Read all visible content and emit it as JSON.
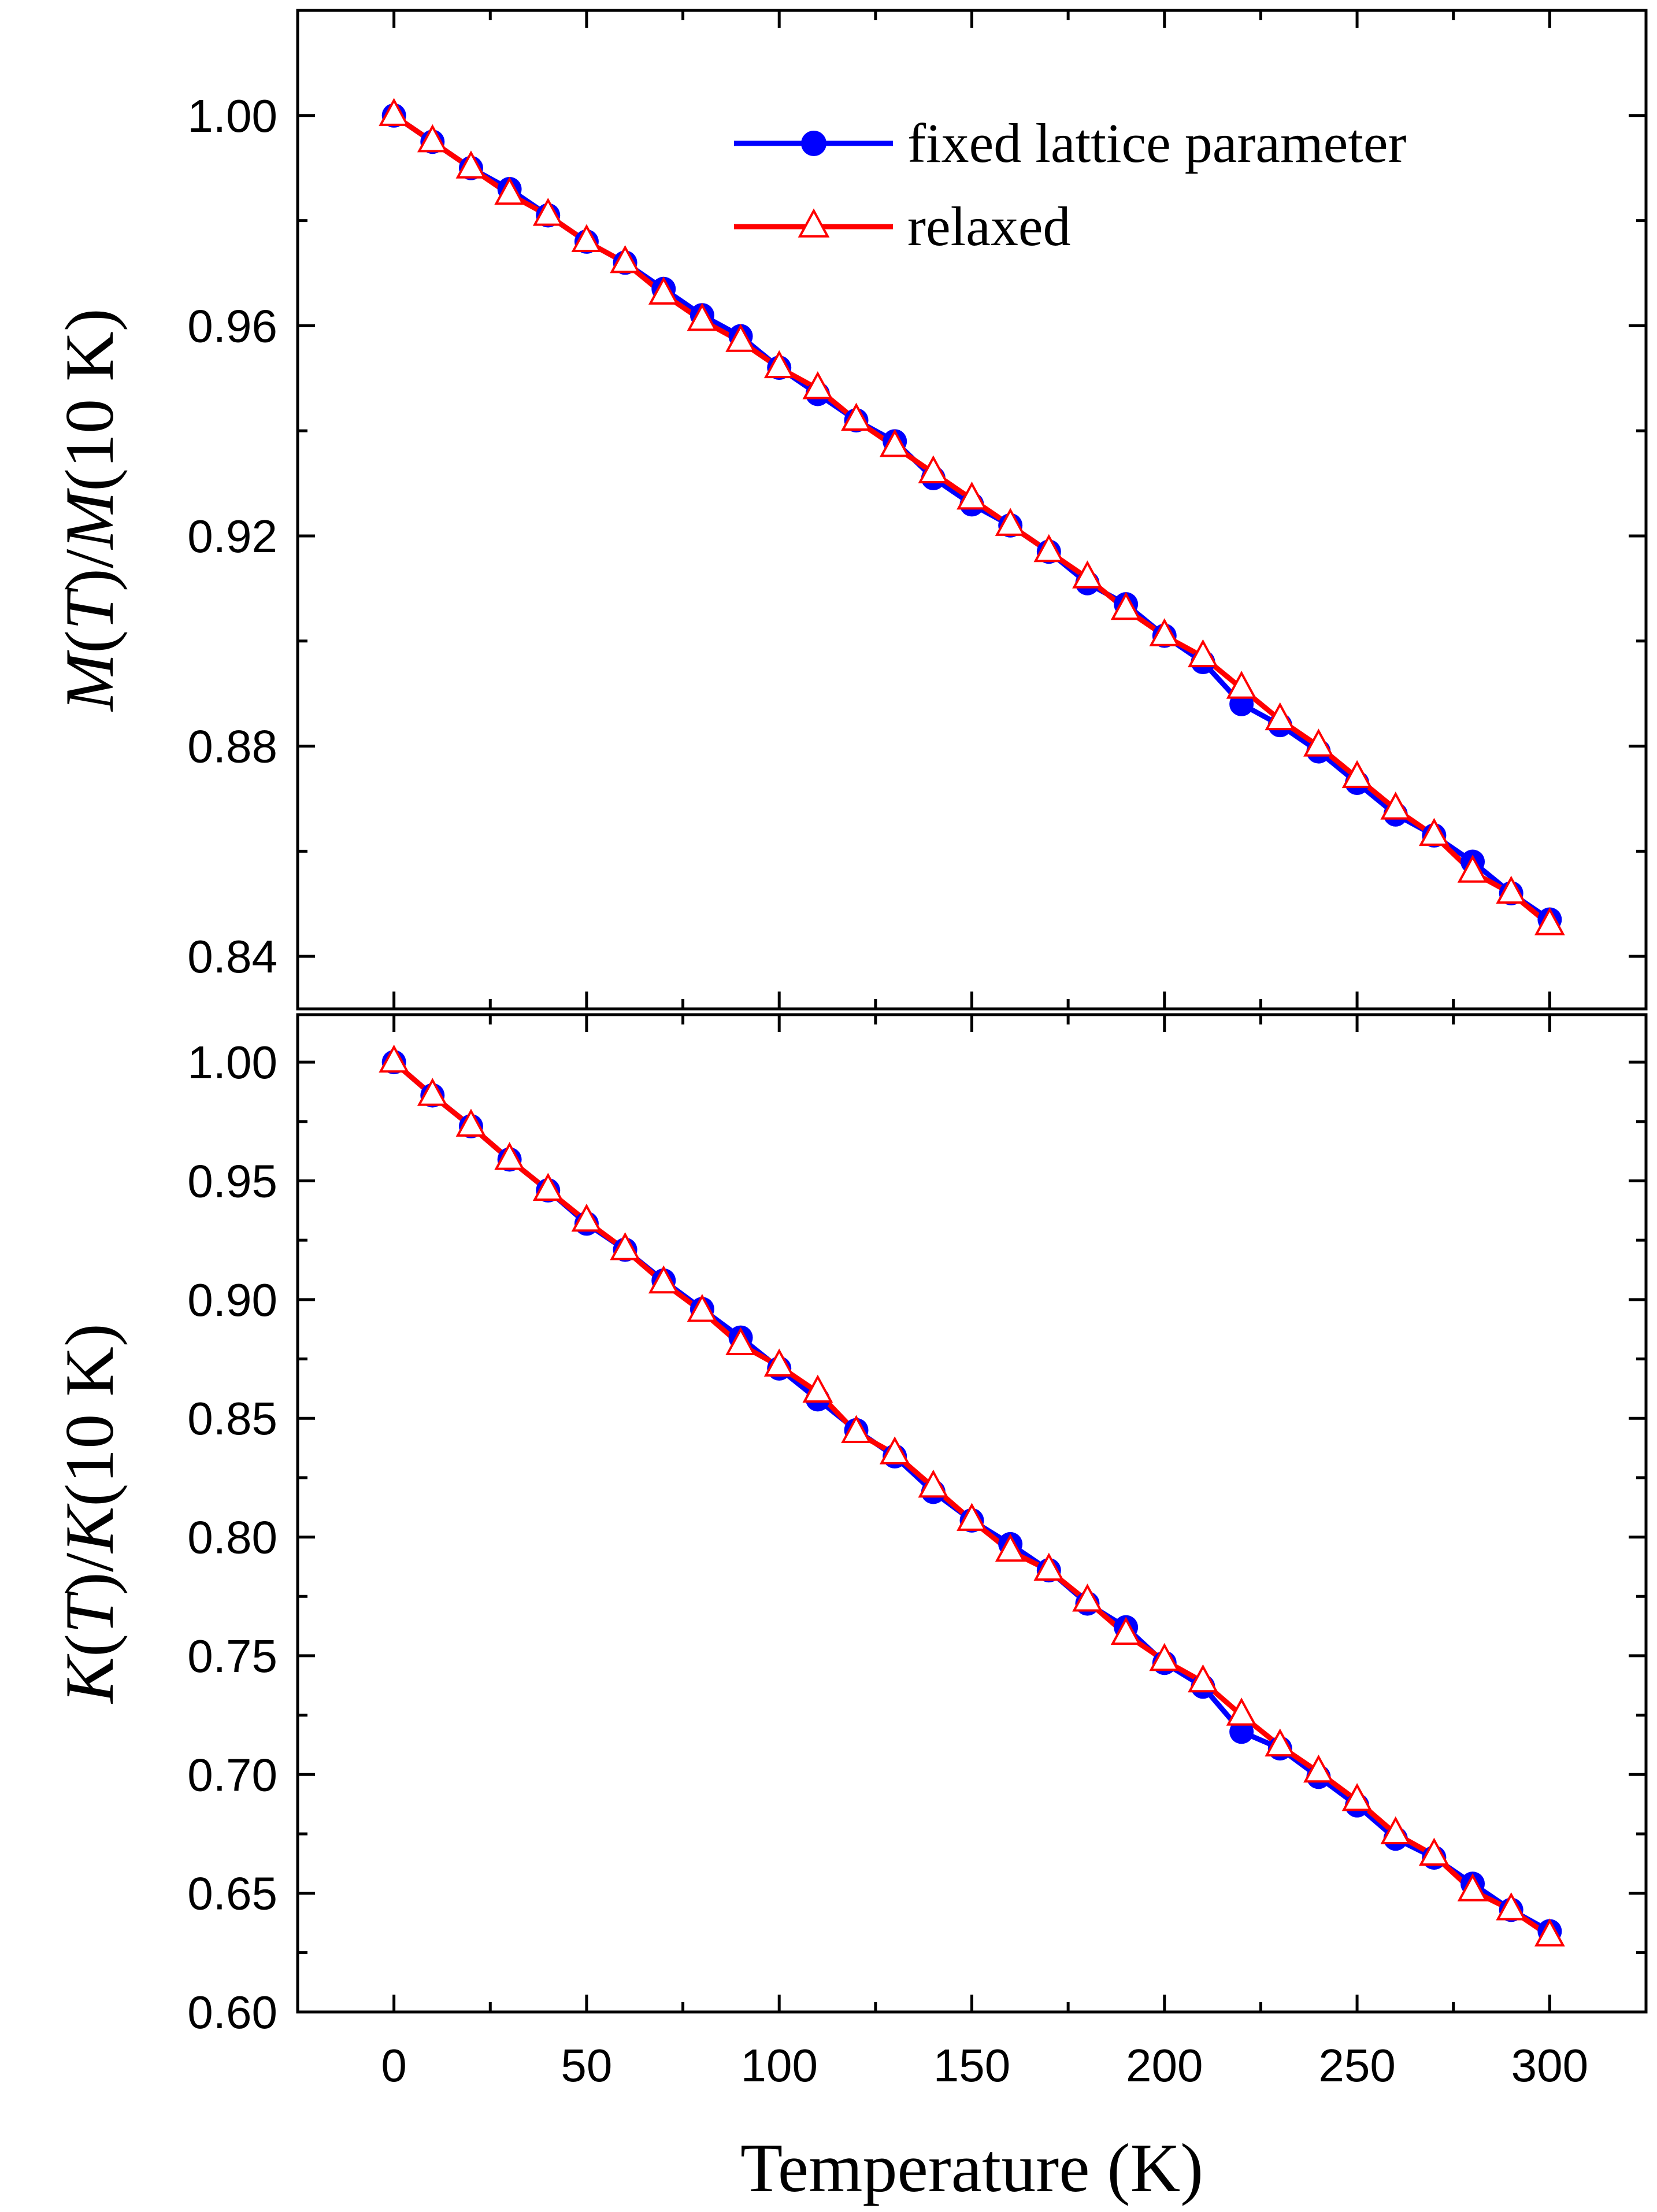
{
  "colors": {
    "fixed": "#0000ff",
    "relaxed": "#ff0000",
    "axes": "#000000"
  },
  "legend": {
    "placement": "top-right",
    "entries": [
      {
        "label": "fixed lattice parameter",
        "marker": "filled-circle",
        "color": "#0000ff"
      },
      {
        "label": "relaxed",
        "marker": "open-triangle",
        "color": "#ff0000"
      }
    ]
  },
  "chart_data": [
    {
      "type": "line",
      "xlabel": "",
      "ylabel_parts": [
        {
          "t": "M",
          "italic": true
        },
        {
          "t": "(",
          "italic": false
        },
        {
          "t": "T",
          "italic": true
        },
        {
          "t": ")/",
          "italic": false
        },
        {
          "t": "M",
          "italic": true
        },
        {
          "t": "(10 K)",
          "italic": false
        }
      ],
      "xlim": [
        -25,
        325
      ],
      "ylim": [
        0.83,
        1.02
      ],
      "xticks": [
        0,
        50,
        100,
        150,
        200,
        250,
        300
      ],
      "xticks_minor": [
        25,
        75,
        125,
        175,
        225,
        275
      ],
      "xtick_labels_shown": false,
      "yticks": [
        0.84,
        0.88,
        0.92,
        0.96,
        1.0
      ],
      "ytick_labels": [
        "0.84",
        "0.88",
        "0.92",
        "0.96",
        "1.00"
      ],
      "yticks_minor": [
        0.86,
        0.9,
        0.94,
        0.98
      ],
      "x": [
        0,
        10,
        20,
        30,
        40,
        50,
        60,
        70,
        80,
        90,
        100,
        110,
        120,
        130,
        140,
        150,
        160,
        170,
        180,
        190,
        200,
        210,
        220,
        230,
        240,
        250,
        260,
        270,
        280,
        290,
        300
      ],
      "series": [
        {
          "name": "fixed lattice parameter",
          "values": [
            1.0,
            0.995,
            0.99,
            0.986,
            0.981,
            0.976,
            0.972,
            0.967,
            0.962,
            0.958,
            0.952,
            0.947,
            0.942,
            0.938,
            0.931,
            0.926,
            0.922,
            0.917,
            0.911,
            0.907,
            0.901,
            0.896,
            0.888,
            0.884,
            0.879,
            0.873,
            0.867,
            0.863,
            0.858,
            0.852,
            0.847
          ]
        },
        {
          "name": "relaxed",
          "values": [
            1.0,
            0.995,
            0.99,
            0.985,
            0.981,
            0.976,
            0.972,
            0.966,
            0.961,
            0.957,
            0.952,
            0.948,
            0.942,
            0.937,
            0.932,
            0.927,
            0.922,
            0.917,
            0.912,
            0.906,
            0.901,
            0.897,
            0.891,
            0.885,
            0.88,
            0.874,
            0.868,
            0.863,
            0.856,
            0.852,
            0.846
          ]
        }
      ]
    },
    {
      "type": "line",
      "xlabel": "Temperature (K)",
      "ylabel_parts": [
        {
          "t": "K",
          "italic": true
        },
        {
          "t": "(",
          "italic": false
        },
        {
          "t": "T",
          "italic": true
        },
        {
          "t": ")/",
          "italic": false
        },
        {
          "t": "K",
          "italic": true
        },
        {
          "t": "(10 K)",
          "italic": false
        }
      ],
      "xlim": [
        -25,
        325
      ],
      "ylim": [
        0.6,
        1.02
      ],
      "xticks": [
        0,
        50,
        100,
        150,
        200,
        250,
        300
      ],
      "xtick_labels": [
        "0",
        "50",
        "100",
        "150",
        "200",
        "250",
        "300"
      ],
      "xticks_minor": [
        25,
        75,
        125,
        175,
        225,
        275
      ],
      "xtick_labels_shown": true,
      "yticks": [
        0.6,
        0.65,
        0.7,
        0.75,
        0.8,
        0.85,
        0.9,
        0.95,
        1.0
      ],
      "ytick_labels": [
        "0.60",
        "0.65",
        "0.70",
        "0.75",
        "0.80",
        "0.85",
        "0.90",
        "0.95",
        "1.00"
      ],
      "yticks_minor": [
        0.625,
        0.675,
        0.725,
        0.775,
        0.825,
        0.875,
        0.925,
        0.975
      ],
      "x": [
        0,
        10,
        20,
        30,
        40,
        50,
        60,
        70,
        80,
        90,
        100,
        110,
        120,
        130,
        140,
        150,
        160,
        170,
        180,
        190,
        200,
        210,
        220,
        230,
        240,
        250,
        260,
        270,
        280,
        290,
        300
      ],
      "series": [
        {
          "name": "fixed lattice parameter",
          "values": [
            1.0,
            0.986,
            0.973,
            0.959,
            0.946,
            0.932,
            0.921,
            0.908,
            0.896,
            0.884,
            0.871,
            0.858,
            0.845,
            0.834,
            0.819,
            0.807,
            0.797,
            0.786,
            0.772,
            0.762,
            0.747,
            0.737,
            0.718,
            0.711,
            0.699,
            0.687,
            0.673,
            0.665,
            0.654,
            0.643,
            0.634
          ]
        },
        {
          "name": "relaxed",
          "values": [
            1.0,
            0.986,
            0.973,
            0.959,
            0.946,
            0.933,
            0.921,
            0.907,
            0.895,
            0.881,
            0.872,
            0.861,
            0.844,
            0.835,
            0.821,
            0.807,
            0.794,
            0.786,
            0.773,
            0.759,
            0.748,
            0.739,
            0.725,
            0.712,
            0.701,
            0.689,
            0.675,
            0.666,
            0.651,
            0.643,
            0.632
          ]
        }
      ]
    }
  ]
}
